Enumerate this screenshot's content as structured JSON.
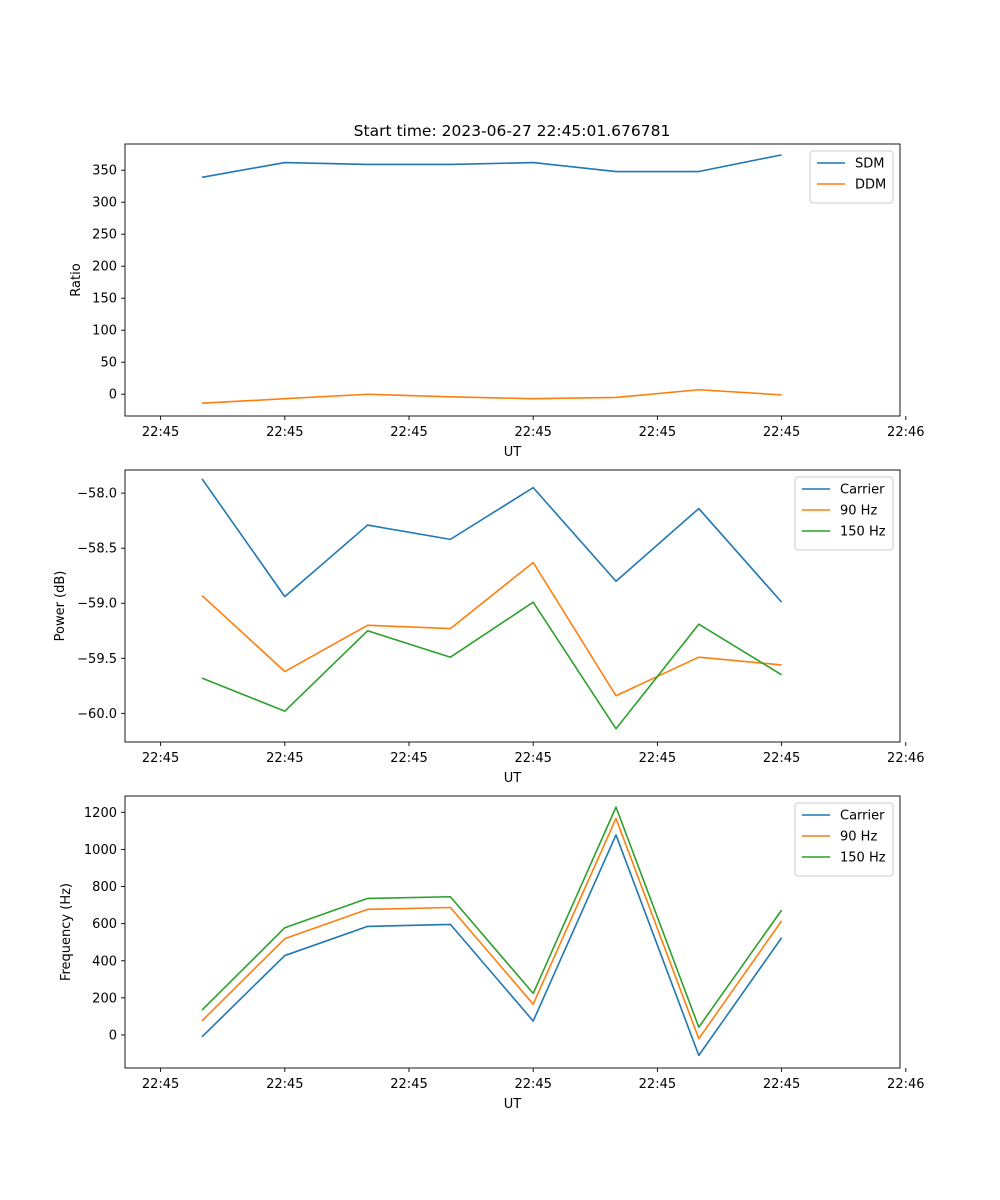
{
  "figure_title": "Start time: 2023-06-27 22:45:01.676781",
  "colors": {
    "blue": "#1f77b4",
    "orange": "#ff7f0e",
    "green": "#2ca02c"
  },
  "chart_data": [
    {
      "type": "line",
      "title": "Start time: 2023-06-27 22:45:01.676781",
      "xlabel": "UT",
      "ylabel": "Ratio",
      "x_tick_labels": [
        "22:45",
        "22:45",
        "22:45",
        "22:45",
        "22:45",
        "22:45",
        "22:46"
      ],
      "y_ticks": [
        0,
        50,
        100,
        150,
        200,
        250,
        300,
        350
      ],
      "y_tick_labels": [
        "0",
        "50",
        "100",
        "150",
        "200",
        "250",
        "300",
        "350"
      ],
      "ylim": [
        -34,
        391
      ],
      "x": [
        1,
        2,
        3,
        4,
        5,
        6,
        7,
        8
      ],
      "xlim": [
        0.07,
        9.43
      ],
      "grid": false,
      "legend_position": "top-right",
      "series": [
        {
          "name": "SDM",
          "color": "#1f77b4",
          "values": [
            339,
            362,
            359,
            359,
            362,
            348,
            348,
            374
          ]
        },
        {
          "name": "DDM",
          "color": "#ff7f0e",
          "values": [
            -14,
            -7,
            0,
            -4,
            -7,
            -5,
            7,
            -1
          ]
        }
      ]
    },
    {
      "type": "line",
      "title": "",
      "xlabel": "UT",
      "ylabel": "Power (dB)",
      "x_tick_labels": [
        "22:45",
        "22:45",
        "22:45",
        "22:45",
        "22:45",
        "22:45",
        "22:46"
      ],
      "y_ticks": [
        -60.0,
        -59.5,
        -59.0,
        -58.5,
        -58.0
      ],
      "y_tick_labels": [
        "−60.0",
        "−59.5",
        "−59.0",
        "−58.5",
        "−58.0"
      ],
      "ylim": [
        -60.26,
        -57.79
      ],
      "x": [
        1,
        2,
        3,
        4,
        5,
        6,
        7,
        8
      ],
      "xlim": [
        0.07,
        9.43
      ],
      "grid": false,
      "legend_position": "top-right",
      "series": [
        {
          "name": "Carrier",
          "color": "#1f77b4",
          "values": [
            -57.87,
            -58.94,
            -58.29,
            -58.42,
            -57.95,
            -58.8,
            -58.14,
            -58.99
          ]
        },
        {
          "name": "90 Hz",
          "color": "#ff7f0e",
          "values": [
            -58.93,
            -59.62,
            -59.2,
            -59.23,
            -58.63,
            -59.84,
            -59.49,
            -59.56
          ]
        },
        {
          "name": "150 Hz",
          "color": "#2ca02c",
          "values": [
            -59.68,
            -59.98,
            -59.25,
            -59.49,
            -58.99,
            -60.14,
            -59.19,
            -59.65
          ]
        }
      ]
    },
    {
      "type": "line",
      "title": "",
      "xlabel": "UT",
      "ylabel": "Frequency (Hz)",
      "x_tick_labels": [
        "22:45",
        "22:45",
        "22:45",
        "22:45",
        "22:45",
        "22:45",
        "22:46"
      ],
      "y_ticks": [
        0,
        200,
        400,
        600,
        800,
        1000,
        1200
      ],
      "y_tick_labels": [
        "0",
        "200",
        "400",
        "600",
        "800",
        "1000",
        "1200"
      ],
      "ylim": [
        -178,
        1288
      ],
      "x": [
        1,
        2,
        3,
        4,
        5,
        6,
        7,
        8
      ],
      "xlim": [
        0.07,
        9.43
      ],
      "grid": false,
      "legend_position": "top-right",
      "series": [
        {
          "name": "Carrier",
          "color": "#1f77b4",
          "values": [
            -10,
            428,
            585,
            596,
            75,
            1078,
            -110,
            524
          ]
        },
        {
          "name": "90 Hz",
          "color": "#ff7f0e",
          "values": [
            76,
            519,
            677,
            687,
            166,
            1167,
            -20,
            615
          ]
        },
        {
          "name": "150 Hz",
          "color": "#2ca02c",
          "values": [
            134,
            578,
            736,
            745,
            224,
            1228,
            42,
            673
          ]
        }
      ]
    }
  ]
}
